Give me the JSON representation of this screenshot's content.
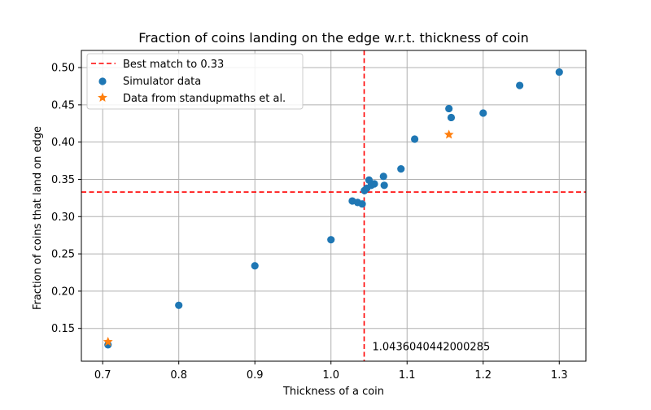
{
  "chart_data": {
    "type": "scatter",
    "title": "Fraction of coins landing on the edge w.r.t. thickness of coin",
    "xlabel": "Thickness of a coin",
    "ylabel": "Fraction of coins that land on edge",
    "xlim": [
      0.672,
      1.335
    ],
    "ylim": [
      0.106,
      0.523
    ],
    "xticks": [
      "0.7",
      "0.8",
      "0.9",
      "1.0",
      "1.1",
      "1.2",
      "1.3"
    ],
    "yticks": [
      "0.15",
      "0.20",
      "0.25",
      "0.30",
      "0.35",
      "0.40",
      "0.45",
      "0.50"
    ],
    "grid": true,
    "legend_position": "top-left",
    "reference_lines": {
      "label": "Best match to 0.33",
      "color": "#ff0000",
      "style": "dashed",
      "x": 1.0436040442000285,
      "y": 0.333,
      "annotation": "1.0436040442000285"
    },
    "series": [
      {
        "name": "Simulator data",
        "marker": "circle",
        "color": "#1f77b4",
        "points": [
          {
            "x": 0.707,
            "y": 0.128
          },
          {
            "x": 0.8,
            "y": 0.181
          },
          {
            "x": 0.9,
            "y": 0.234
          },
          {
            "x": 1.0,
            "y": 0.269
          },
          {
            "x": 1.028,
            "y": 0.321
          },
          {
            "x": 1.035,
            "y": 0.319
          },
          {
            "x": 1.041,
            "y": 0.317
          },
          {
            "x": 1.044,
            "y": 0.335
          },
          {
            "x": 1.047,
            "y": 0.338
          },
          {
            "x": 1.05,
            "y": 0.349
          },
          {
            "x": 1.053,
            "y": 0.342
          },
          {
            "x": 1.057,
            "y": 0.344
          },
          {
            "x": 1.069,
            "y": 0.354
          },
          {
            "x": 1.07,
            "y": 0.342
          },
          {
            "x": 1.092,
            "y": 0.364
          },
          {
            "x": 1.11,
            "y": 0.404
          },
          {
            "x": 1.155,
            "y": 0.445
          },
          {
            "x": 1.158,
            "y": 0.433
          },
          {
            "x": 1.2,
            "y": 0.439
          },
          {
            "x": 1.248,
            "y": 0.476
          },
          {
            "x": 1.3,
            "y": 0.494
          }
        ]
      },
      {
        "name": "Data from standupmaths et al.",
        "marker": "star",
        "color": "#ff7f0e",
        "points": [
          {
            "x": 0.707,
            "y": 0.132
          },
          {
            "x": 1.155,
            "y": 0.41
          }
        ]
      }
    ]
  }
}
